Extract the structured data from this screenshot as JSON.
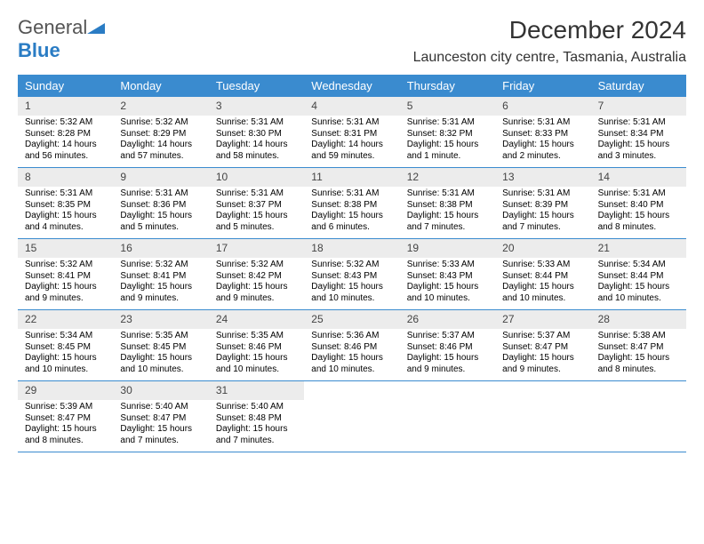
{
  "logo": {
    "text1": "General",
    "text2": "Blue"
  },
  "header": {
    "title": "December 2024",
    "location": "Launceston city centre, Tasmania, Australia"
  },
  "colors": {
    "bar": "#3a8bcf",
    "light": "#ececec",
    "text": "#111111",
    "title": "#333333"
  },
  "daysOfWeek": [
    "Sunday",
    "Monday",
    "Tuesday",
    "Wednesday",
    "Thursday",
    "Friday",
    "Saturday"
  ],
  "weeks": [
    {
      "days": [
        {
          "num": "1",
          "sunrise": "Sunrise: 5:32 AM",
          "sunset": "Sunset: 8:28 PM",
          "daylight1": "Daylight: 14 hours",
          "daylight2": "and 56 minutes."
        },
        {
          "num": "2",
          "sunrise": "Sunrise: 5:32 AM",
          "sunset": "Sunset: 8:29 PM",
          "daylight1": "Daylight: 14 hours",
          "daylight2": "and 57 minutes."
        },
        {
          "num": "3",
          "sunrise": "Sunrise: 5:31 AM",
          "sunset": "Sunset: 8:30 PM",
          "daylight1": "Daylight: 14 hours",
          "daylight2": "and 58 minutes."
        },
        {
          "num": "4",
          "sunrise": "Sunrise: 5:31 AM",
          "sunset": "Sunset: 8:31 PM",
          "daylight1": "Daylight: 14 hours",
          "daylight2": "and 59 minutes."
        },
        {
          "num": "5",
          "sunrise": "Sunrise: 5:31 AM",
          "sunset": "Sunset: 8:32 PM",
          "daylight1": "Daylight: 15 hours",
          "daylight2": "and 1 minute."
        },
        {
          "num": "6",
          "sunrise": "Sunrise: 5:31 AM",
          "sunset": "Sunset: 8:33 PM",
          "daylight1": "Daylight: 15 hours",
          "daylight2": "and 2 minutes."
        },
        {
          "num": "7",
          "sunrise": "Sunrise: 5:31 AM",
          "sunset": "Sunset: 8:34 PM",
          "daylight1": "Daylight: 15 hours",
          "daylight2": "and 3 minutes."
        }
      ]
    },
    {
      "days": [
        {
          "num": "8",
          "sunrise": "Sunrise: 5:31 AM",
          "sunset": "Sunset: 8:35 PM",
          "daylight1": "Daylight: 15 hours",
          "daylight2": "and 4 minutes."
        },
        {
          "num": "9",
          "sunrise": "Sunrise: 5:31 AM",
          "sunset": "Sunset: 8:36 PM",
          "daylight1": "Daylight: 15 hours",
          "daylight2": "and 5 minutes."
        },
        {
          "num": "10",
          "sunrise": "Sunrise: 5:31 AM",
          "sunset": "Sunset: 8:37 PM",
          "daylight1": "Daylight: 15 hours",
          "daylight2": "and 5 minutes."
        },
        {
          "num": "11",
          "sunrise": "Sunrise: 5:31 AM",
          "sunset": "Sunset: 8:38 PM",
          "daylight1": "Daylight: 15 hours",
          "daylight2": "and 6 minutes."
        },
        {
          "num": "12",
          "sunrise": "Sunrise: 5:31 AM",
          "sunset": "Sunset: 8:38 PM",
          "daylight1": "Daylight: 15 hours",
          "daylight2": "and 7 minutes."
        },
        {
          "num": "13",
          "sunrise": "Sunrise: 5:31 AM",
          "sunset": "Sunset: 8:39 PM",
          "daylight1": "Daylight: 15 hours",
          "daylight2": "and 7 minutes."
        },
        {
          "num": "14",
          "sunrise": "Sunrise: 5:31 AM",
          "sunset": "Sunset: 8:40 PM",
          "daylight1": "Daylight: 15 hours",
          "daylight2": "and 8 minutes."
        }
      ]
    },
    {
      "days": [
        {
          "num": "15",
          "sunrise": "Sunrise: 5:32 AM",
          "sunset": "Sunset: 8:41 PM",
          "daylight1": "Daylight: 15 hours",
          "daylight2": "and 9 minutes."
        },
        {
          "num": "16",
          "sunrise": "Sunrise: 5:32 AM",
          "sunset": "Sunset: 8:41 PM",
          "daylight1": "Daylight: 15 hours",
          "daylight2": "and 9 minutes."
        },
        {
          "num": "17",
          "sunrise": "Sunrise: 5:32 AM",
          "sunset": "Sunset: 8:42 PM",
          "daylight1": "Daylight: 15 hours",
          "daylight2": "and 9 minutes."
        },
        {
          "num": "18",
          "sunrise": "Sunrise: 5:32 AM",
          "sunset": "Sunset: 8:43 PM",
          "daylight1": "Daylight: 15 hours",
          "daylight2": "and 10 minutes."
        },
        {
          "num": "19",
          "sunrise": "Sunrise: 5:33 AM",
          "sunset": "Sunset: 8:43 PM",
          "daylight1": "Daylight: 15 hours",
          "daylight2": "and 10 minutes."
        },
        {
          "num": "20",
          "sunrise": "Sunrise: 5:33 AM",
          "sunset": "Sunset: 8:44 PM",
          "daylight1": "Daylight: 15 hours",
          "daylight2": "and 10 minutes."
        },
        {
          "num": "21",
          "sunrise": "Sunrise: 5:34 AM",
          "sunset": "Sunset: 8:44 PM",
          "daylight1": "Daylight: 15 hours",
          "daylight2": "and 10 minutes."
        }
      ]
    },
    {
      "days": [
        {
          "num": "22",
          "sunrise": "Sunrise: 5:34 AM",
          "sunset": "Sunset: 8:45 PM",
          "daylight1": "Daylight: 15 hours",
          "daylight2": "and 10 minutes."
        },
        {
          "num": "23",
          "sunrise": "Sunrise: 5:35 AM",
          "sunset": "Sunset: 8:45 PM",
          "daylight1": "Daylight: 15 hours",
          "daylight2": "and 10 minutes."
        },
        {
          "num": "24",
          "sunrise": "Sunrise: 5:35 AM",
          "sunset": "Sunset: 8:46 PM",
          "daylight1": "Daylight: 15 hours",
          "daylight2": "and 10 minutes."
        },
        {
          "num": "25",
          "sunrise": "Sunrise: 5:36 AM",
          "sunset": "Sunset: 8:46 PM",
          "daylight1": "Daylight: 15 hours",
          "daylight2": "and 10 minutes."
        },
        {
          "num": "26",
          "sunrise": "Sunrise: 5:37 AM",
          "sunset": "Sunset: 8:46 PM",
          "daylight1": "Daylight: 15 hours",
          "daylight2": "and 9 minutes."
        },
        {
          "num": "27",
          "sunrise": "Sunrise: 5:37 AM",
          "sunset": "Sunset: 8:47 PM",
          "daylight1": "Daylight: 15 hours",
          "daylight2": "and 9 minutes."
        },
        {
          "num": "28",
          "sunrise": "Sunrise: 5:38 AM",
          "sunset": "Sunset: 8:47 PM",
          "daylight1": "Daylight: 15 hours",
          "daylight2": "and 8 minutes."
        }
      ]
    },
    {
      "days": [
        {
          "num": "29",
          "sunrise": "Sunrise: 5:39 AM",
          "sunset": "Sunset: 8:47 PM",
          "daylight1": "Daylight: 15 hours",
          "daylight2": "and 8 minutes."
        },
        {
          "num": "30",
          "sunrise": "Sunrise: 5:40 AM",
          "sunset": "Sunset: 8:47 PM",
          "daylight1": "Daylight: 15 hours",
          "daylight2": "and 7 minutes."
        },
        {
          "num": "31",
          "sunrise": "Sunrise: 5:40 AM",
          "sunset": "Sunset: 8:48 PM",
          "daylight1": "Daylight: 15 hours",
          "daylight2": "and 7 minutes."
        },
        {
          "num": "",
          "sunrise": "",
          "sunset": "",
          "daylight1": "",
          "daylight2": "",
          "empty": true
        },
        {
          "num": "",
          "sunrise": "",
          "sunset": "",
          "daylight1": "",
          "daylight2": "",
          "empty": true
        },
        {
          "num": "",
          "sunrise": "",
          "sunset": "",
          "daylight1": "",
          "daylight2": "",
          "empty": true
        },
        {
          "num": "",
          "sunrise": "",
          "sunset": "",
          "daylight1": "",
          "daylight2": "",
          "empty": true
        }
      ]
    }
  ]
}
